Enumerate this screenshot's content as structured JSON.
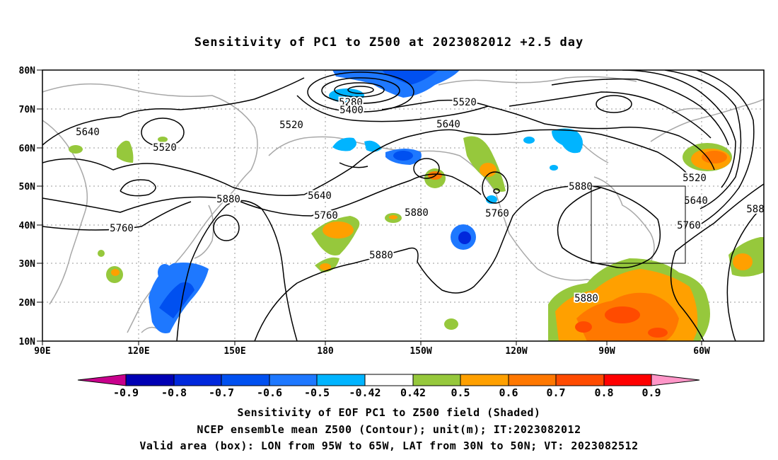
{
  "title": "Sensitivity of PC1 to Z500 at 2023082012 +2.5 day",
  "lat_labels": [
    "80N",
    "70N",
    "60N",
    "50N",
    "40N",
    "30N",
    "20N",
    "10N"
  ],
  "lon_labels": [
    "90E",
    "120E",
    "150E",
    "180",
    "150W",
    "120W",
    "90W",
    "60W"
  ],
  "contour_labels": [
    "5280",
    "5400",
    "5520",
    "5520",
    "5640",
    "5520",
    "5640",
    "5880",
    "5640",
    "5760",
    "5880",
    "5760",
    "5880",
    "5760",
    "5880",
    "5520",
    "5640",
    "5760",
    "5880",
    "588"
  ],
  "colorbar": {
    "labels": [
      "-0.9",
      "-0.8",
      "-0.7",
      "-0.6",
      "-0.5",
      "-0.42",
      "0.42",
      "0.5",
      "0.6",
      "0.7",
      "0.8",
      "0.9"
    ],
    "colors": [
      "#c8008c",
      "#0000b4",
      "#0028dc",
      "#0050f0",
      "#1e78ff",
      "#00b4ff",
      "#ffffff",
      "#96c83c",
      "#ffa000",
      "#ff7800",
      "#ff4b00",
      "#ff0000",
      "#ff96c8"
    ]
  },
  "valid_box": {
    "lon_west": -95,
    "lon_east": -65,
    "lat_south": 30,
    "lat_north": 50
  },
  "captions": [
    "Sensitivity of EOF PC1 to Z500 field (Shaded)",
    "NCEP ensemble mean Z500 (Contour); unit(m); IT:2023082012",
    "Valid area (box): LON from 95W to 65W, LAT from 30N to 50N; VT: 2023082512"
  ]
}
